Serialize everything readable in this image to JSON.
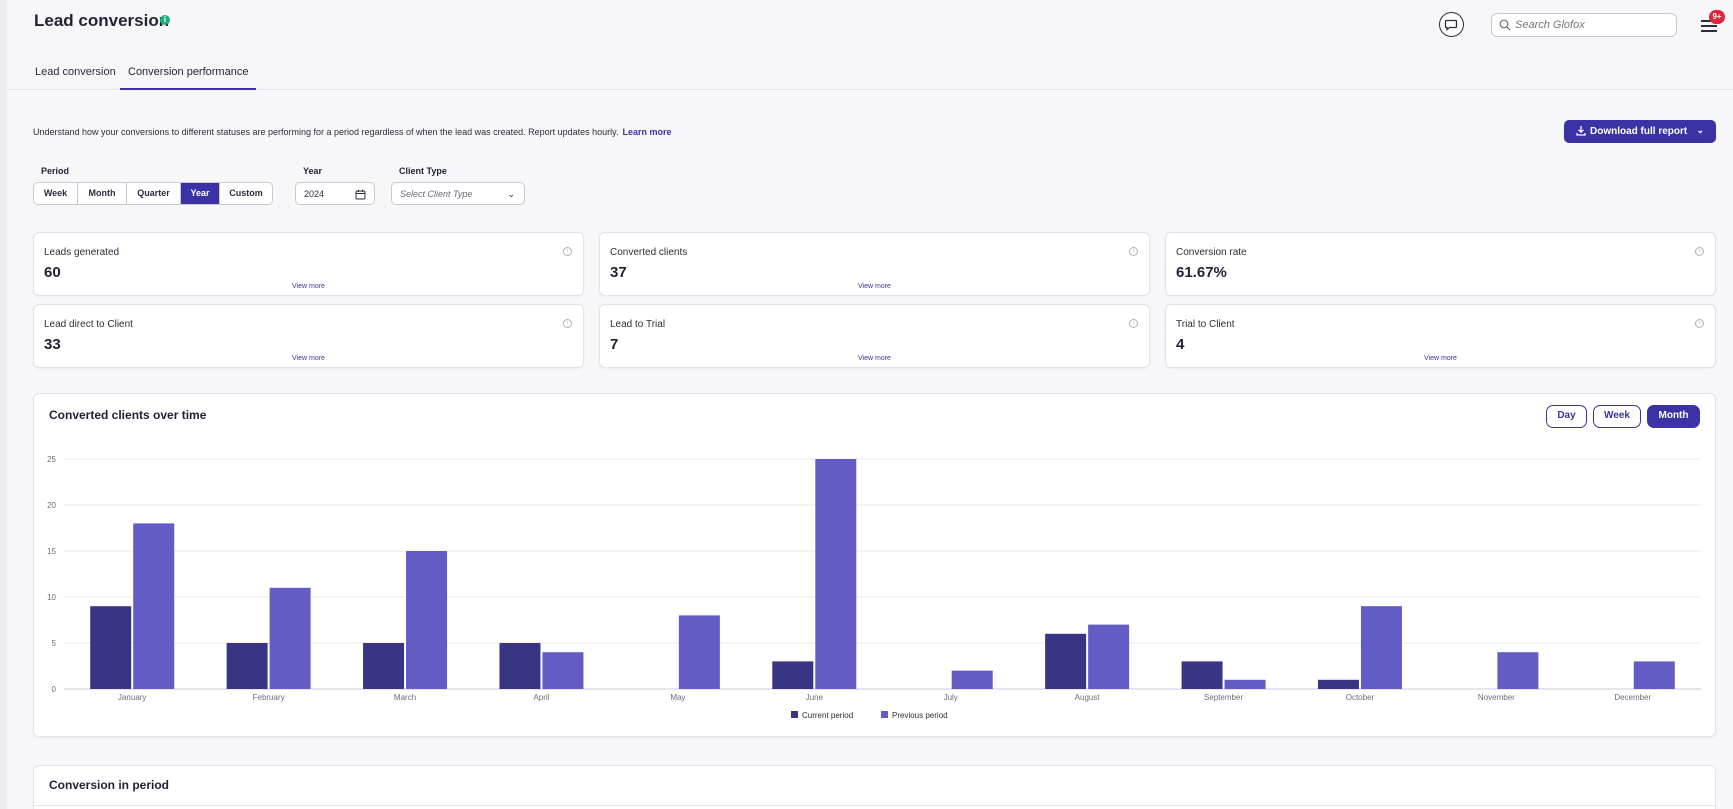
{
  "header": {
    "title": "Lead conversion",
    "title_info_icon": "info-icon",
    "chat_icon": "chat-bubble-icon",
    "search_placeholder": "Search Glofox",
    "search_icon": "search-icon",
    "menu_icon": "hamburger-menu-icon",
    "notification_badge": "9+"
  },
  "tabs": [
    {
      "label": "Lead conversion",
      "active": false
    },
    {
      "label": "Conversion performance",
      "active": true
    }
  ],
  "description": {
    "text": "Understand how your conversions to different statuses are performing for a period regardless of when the lead was created. Report updates hourly.",
    "link": "Learn more"
  },
  "download_button": {
    "label": "Download full report",
    "icon": "download-icon",
    "caret_icon": "chevron-down-icon"
  },
  "filters": {
    "period_label": "Period",
    "period_options": [
      "Week",
      "Month",
      "Quarter",
      "Year",
      "Custom"
    ],
    "period_selected": "Year",
    "year_label": "Year",
    "year_value": "2024",
    "year_icon": "calendar-icon",
    "client_type_label": "Client Type",
    "client_type_placeholder": "Select Client Type"
  },
  "kpis": [
    {
      "label": "Leads generated",
      "value": "60",
      "link": "View more"
    },
    {
      "label": "Converted clients",
      "value": "37",
      "link": "View more"
    },
    {
      "label": "Conversion rate",
      "value": "61.67%",
      "link": ""
    },
    {
      "label": "Lead direct to Client",
      "value": "33",
      "link": "View more"
    },
    {
      "label": "Lead to Trial",
      "value": "7",
      "link": "View more"
    },
    {
      "label": "Trial to Client",
      "value": "4",
      "link": "View more"
    }
  ],
  "chart_section": {
    "title": "Converted clients over time",
    "granularity_options": [
      "Day",
      "Week",
      "Month"
    ],
    "granularity_selected": "Month"
  },
  "chart_data": {
    "type": "bar",
    "categories": [
      "January",
      "February",
      "March",
      "April",
      "May",
      "June",
      "July",
      "August",
      "September",
      "October",
      "November",
      "December"
    ],
    "series": [
      {
        "name": "Current period",
        "color": "#3a3485",
        "values": [
          9,
          5,
          5,
          5,
          0,
          3,
          0,
          6,
          3,
          1,
          0,
          0
        ]
      },
      {
        "name": "Previous period",
        "color": "#645cc5",
        "values": [
          18,
          11,
          15,
          4,
          8,
          25,
          2,
          7,
          1,
          9,
          4,
          3
        ]
      }
    ],
    "ylim": [
      0,
      25
    ],
    "yticks": [
      0,
      5,
      10,
      15,
      20,
      25
    ],
    "grid": true,
    "legend": "bottom-center",
    "xlabel": "",
    "ylabel": ""
  },
  "bottom_section": {
    "title": "Conversion in period"
  }
}
